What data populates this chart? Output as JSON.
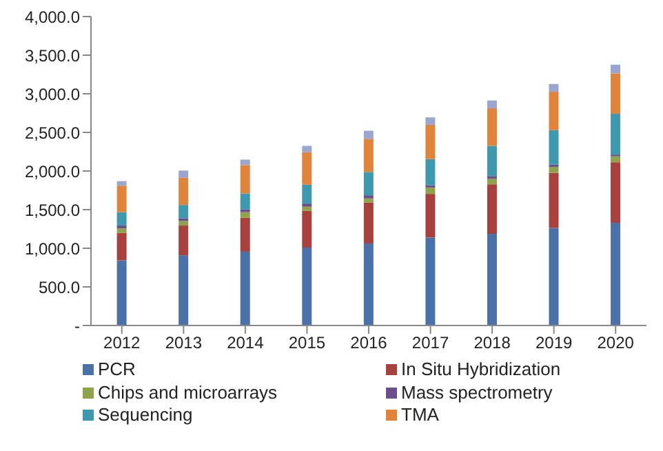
{
  "chart_data": {
    "type": "bar",
    "stacked": true,
    "categories": [
      "2012",
      "2013",
      "2014",
      "2015",
      "2016",
      "2017",
      "2018",
      "2019",
      "2020"
    ],
    "series": [
      {
        "name": "PCR",
        "color": "#4a72a8",
        "values": [
          844,
          908,
          956,
          1009,
          1063,
          1139,
          1187,
          1264,
          1330
        ]
      },
      {
        "name": "In Situ Hybridization",
        "color": "#a8403e",
        "values": [
          356,
          386,
          439,
          475,
          528,
          565,
          641,
          712,
          783
        ]
      },
      {
        "name": "Chips and microarrays",
        "color": "#8fa34c",
        "values": [
          58,
          59,
          72,
          54,
          54,
          83,
          71,
          78,
          77
        ]
      },
      {
        "name": "Mass spectrometry",
        "color": "#6b4f8a",
        "values": [
          36,
          35,
          35,
          41,
          41,
          29,
          36,
          29,
          23
        ]
      },
      {
        "name": "Sequencing",
        "color": "#3e98ae",
        "values": [
          173,
          173,
          207,
          244,
          302,
          338,
          391,
          445,
          528
        ]
      },
      {
        "name": "TMA",
        "color": "#e0843c",
        "values": [
          343,
          351,
          368,
          420,
          428,
          445,
          486,
          498,
          523
        ]
      },
      {
        "color": "#9aa6cf",
        "values": [
          59,
          94,
          71,
          83,
          106,
          96,
          102,
          101,
          113
        ]
      }
    ],
    "ylim": [
      0,
      4000
    ],
    "yticks": [
      {
        "value": 0,
        "label": "-"
      },
      {
        "value": 500,
        "label": "500.0"
      },
      {
        "value": 1000,
        "label": "1,000.0"
      },
      {
        "value": 1500,
        "label": "1,500.0"
      },
      {
        "value": 2000,
        "label": "2,000.0"
      },
      {
        "value": 2500,
        "label": "2,500.0"
      },
      {
        "value": 3000,
        "label": "3,000.0"
      },
      {
        "value": 3500,
        "label": "3,500.0"
      },
      {
        "value": 4000,
        "label": "4,000.0"
      }
    ],
    "grid": false,
    "legend": "bottom"
  }
}
